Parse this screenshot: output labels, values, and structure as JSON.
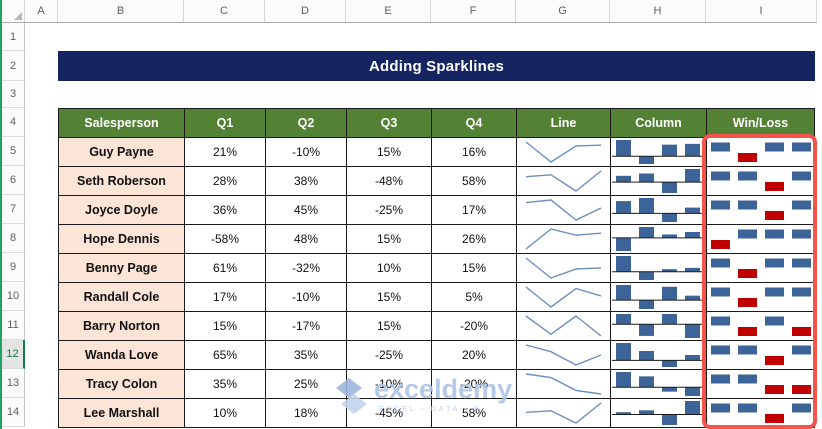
{
  "spreadsheet": {
    "column_headers": [
      "A",
      "B",
      "C",
      "D",
      "E",
      "F",
      "G",
      "H",
      "I"
    ],
    "row_headers": [
      "1",
      "2",
      "3",
      "4",
      "5",
      "6",
      "7",
      "8",
      "9",
      "10",
      "11",
      "12",
      "13",
      "14"
    ],
    "selected_row": "12"
  },
  "banner": {
    "title": "Adding Sparklines"
  },
  "table": {
    "headers": [
      "Salesperson",
      "Q1",
      "Q2",
      "Q3",
      "Q4",
      "Line",
      "Column",
      "Win/Loss"
    ],
    "rows": [
      {
        "name": "Guy Payne",
        "cells": [
          "21%",
          "-10%",
          "15%",
          "16%"
        ],
        "values": [
          21,
          -10,
          15,
          16
        ]
      },
      {
        "name": "Seth Roberson",
        "cells": [
          "28%",
          "38%",
          "-48%",
          "58%"
        ],
        "values": [
          28,
          38,
          -48,
          58
        ]
      },
      {
        "name": "Joyce Doyle",
        "cells": [
          "36%",
          "45%",
          "-25%",
          "17%"
        ],
        "values": [
          36,
          45,
          -25,
          17
        ]
      },
      {
        "name": "Hope Dennis",
        "cells": [
          "-58%",
          "48%",
          "15%",
          "26%"
        ],
        "values": [
          -58,
          48,
          15,
          26
        ]
      },
      {
        "name": "Benny Page",
        "cells": [
          "61%",
          "-32%",
          "10%",
          "15%"
        ],
        "values": [
          61,
          -32,
          10,
          15
        ]
      },
      {
        "name": "Randall Cole",
        "cells": [
          "17%",
          "-10%",
          "15%",
          "5%"
        ],
        "values": [
          17,
          -10,
          15,
          5
        ]
      },
      {
        "name": "Barry Norton",
        "cells": [
          "15%",
          "-17%",
          "15%",
          "-20%"
        ],
        "values": [
          15,
          -17,
          15,
          -20
        ]
      },
      {
        "name": "Wanda Love",
        "cells": [
          "65%",
          "35%",
          "-25%",
          "20%"
        ],
        "values": [
          65,
          35,
          -25,
          20
        ]
      },
      {
        "name": "Tracy Colon",
        "cells": [
          "35%",
          "25%",
          "-10%",
          "-20%"
        ],
        "values": [
          35,
          25,
          -10,
          -20
        ]
      },
      {
        "name": "Lee Marshall",
        "cells": [
          "10%",
          "18%",
          "-45%",
          "58%"
        ],
        "values": [
          10,
          18,
          -45,
          58
        ]
      }
    ]
  },
  "chart_data": {
    "type": "table",
    "title": "Adding Sparklines",
    "categories": [
      "Q1",
      "Q2",
      "Q3",
      "Q4"
    ],
    "series": [
      {
        "name": "Guy Payne",
        "values": [
          21,
          -10,
          15,
          16
        ]
      },
      {
        "name": "Seth Roberson",
        "values": [
          28,
          38,
          -48,
          58
        ]
      },
      {
        "name": "Joyce Doyle",
        "values": [
          36,
          45,
          -25,
          17
        ]
      },
      {
        "name": "Hope Dennis",
        "values": [
          -58,
          48,
          15,
          26
        ]
      },
      {
        "name": "Benny Page",
        "values": [
          61,
          -32,
          10,
          15
        ]
      },
      {
        "name": "Randall Cole",
        "values": [
          17,
          -10,
          15,
          5
        ]
      },
      {
        "name": "Barry Norton",
        "values": [
          15,
          -17,
          15,
          -20
        ]
      },
      {
        "name": "Wanda Love",
        "values": [
          65,
          35,
          -25,
          20
        ]
      },
      {
        "name": "Tracy Colon",
        "values": [
          35,
          25,
          -10,
          -20
        ]
      },
      {
        "name": "Lee Marshall",
        "values": [
          10,
          18,
          -45,
          58
        ]
      }
    ],
    "sparkline_columns": [
      {
        "label": "Line",
        "type": "line"
      },
      {
        "label": "Column",
        "type": "bar"
      },
      {
        "label": "Win/Loss",
        "type": "win-loss"
      }
    ],
    "layout": "each sparkline scaled to its own row min/max; win/loss: positive=blue above axis, negative=red below"
  },
  "watermark": {
    "text": "exceldemy",
    "subtext": "EXCEL - DATA - B"
  },
  "colors": {
    "banner_bg": "#142562",
    "table_header_bg": "#548235",
    "name_column_bg": "#FCE4D6",
    "sparkline_blue": "#3D6499",
    "sparkline_line_blue": "#6C8EBF",
    "winloss_red": "#C00000",
    "highlight_border_red": "#F4544A",
    "selected_row_green": "#107C41"
  }
}
